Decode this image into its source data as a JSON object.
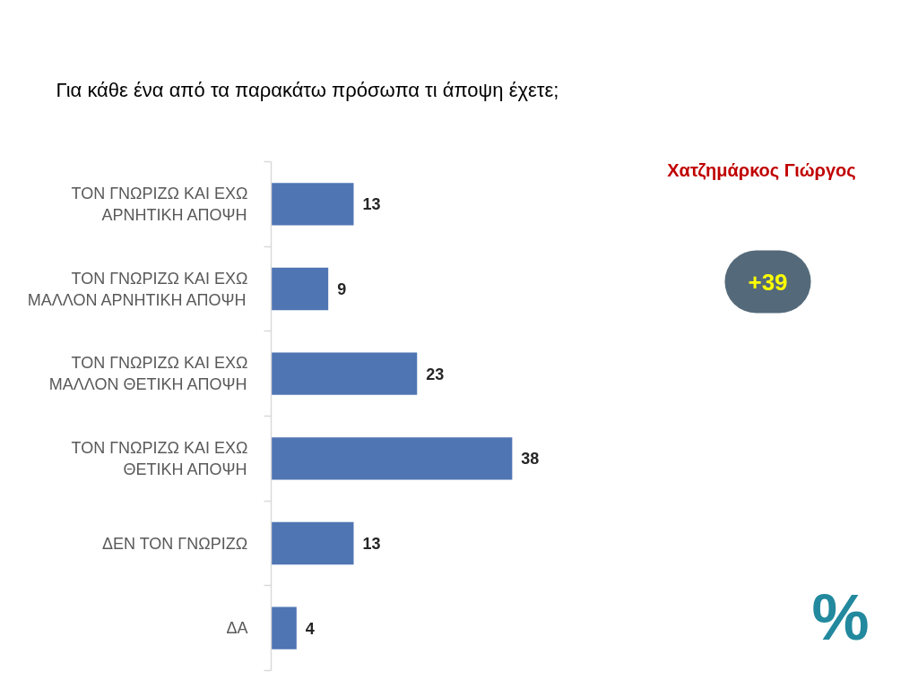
{
  "chart_data": {
    "type": "bar",
    "orientation": "horizontal",
    "title": "Για κάθε ένα από τα παρακάτω πρόσωπα τι άποψη έχετε;",
    "subtitle": "Χατζημάρκος Γιώργος",
    "annotations": [
      "+39",
      "%"
    ],
    "categories": [
      "ΤΟΝ ΓΝΩΡΙΖΩ ΚΑΙ ΕΧΩ ΑΡΝΗΤΙΚΗ ΑΠΟΨΗ",
      "ΤΟΝ ΓΝΩΡΙΖΩ ΚΑΙ ΕΧΩ ΜΑΛΛΟΝ ΑΡΝΗΤΙΚΗ ΑΠΟΨΗ",
      "ΤΟΝ ΓΝΩΡΙΖΩ ΚΑΙ ΕΧΩ ΜΑΛΛΟΝ ΘΕΤΙΚΗ ΑΠΟΨΗ",
      "ΤΟΝ ΓΝΩΡΙΖΩ ΚΑΙ ΕΧΩ ΘΕΤΙΚΗ ΑΠΟΨΗ",
      "ΔΕΝ ΤΟΝ ΓΝΩΡΙΖΩ",
      "ΔΑ"
    ],
    "values": [
      13,
      9,
      23,
      38,
      13,
      4
    ],
    "color": "#4f75b3",
    "data_labels": true
  }
}
